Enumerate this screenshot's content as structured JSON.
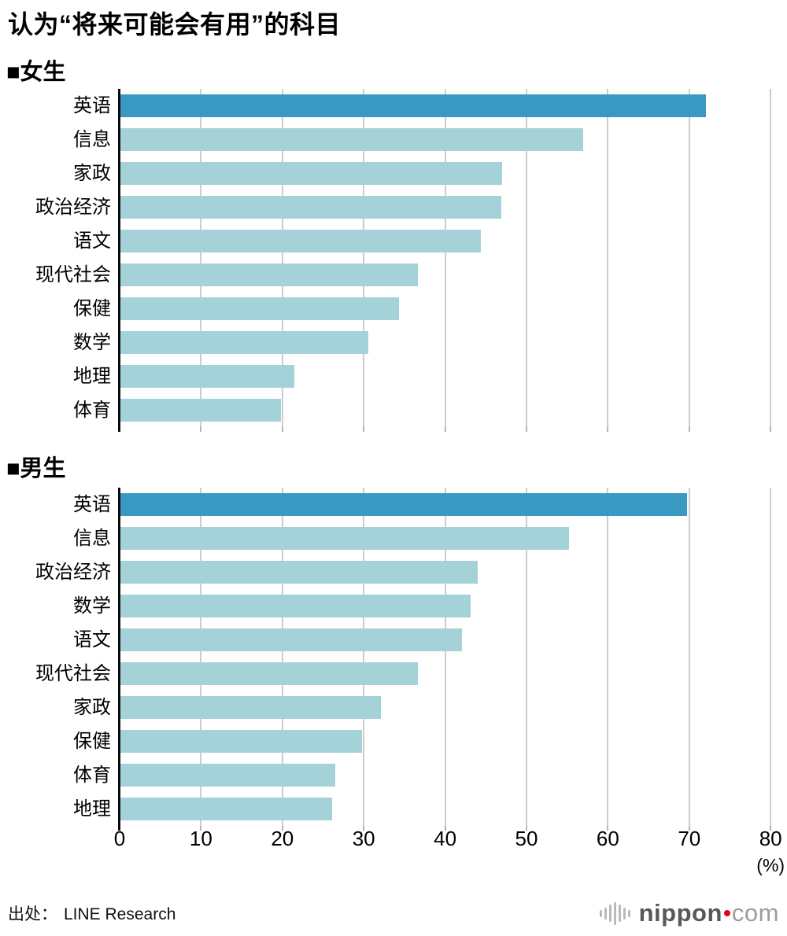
{
  "title": "认为“将来可能会有用”的科目",
  "chart_data": [
    {
      "type": "bar",
      "orientation": "horizontal",
      "section_label": "■女生",
      "categories": [
        "英语",
        "信息",
        "家政",
        "政治经济",
        "语文",
        "现代社会",
        "保健",
        "数学",
        "地理",
        "体育"
      ],
      "values": [
        72.0,
        56.9,
        46.9,
        46.8,
        44.3,
        36.6,
        34.2,
        30.5,
        21.4,
        19.7
      ],
      "highlight_index": 0,
      "xlim": [
        0,
        80
      ],
      "x_ticks": [
        0,
        10,
        20,
        30,
        40,
        50,
        60,
        70,
        80
      ],
      "x_unit": "(%)",
      "grid": true
    },
    {
      "type": "bar",
      "orientation": "horizontal",
      "section_label": "■男生",
      "categories": [
        "英语",
        "信息",
        "政治经济",
        "数学",
        "语文",
        "现代社会",
        "家政",
        "保健",
        "体育",
        "地理"
      ],
      "values": [
        69.6,
        55.1,
        43.9,
        43.0,
        42.0,
        36.6,
        32.0,
        29.7,
        26.4,
        26.0
      ],
      "highlight_index": 0,
      "xlim": [
        0,
        80
      ],
      "x_ticks": [
        0,
        10,
        20,
        30,
        40,
        50,
        60,
        70,
        80
      ],
      "x_unit": "(%)",
      "grid": true
    }
  ],
  "axis": {
    "tick_labels": [
      "0",
      "10",
      "20",
      "30",
      "40",
      "50",
      "60",
      "70",
      "80"
    ],
    "tick_values": [
      0,
      10,
      20,
      30,
      40,
      50,
      60,
      70,
      80
    ],
    "unit_label": "(%)"
  },
  "footer": {
    "source_label": "出处：",
    "source_value": "LINE Research"
  },
  "logo": {
    "name": "nippon",
    "tld": "com",
    "icon": "soundwave-icon"
  },
  "colors": {
    "bar_highlight": "#389ac2",
    "bar_normal": "#a5d2d8",
    "gridline": "#cccccc",
    "axis_line": "#0a0a0a",
    "logo_name": "#595959",
    "logo_tld": "#9d9d9d",
    "logo_dot_red": "#e60012",
    "logo_icon_gray": "#b9b9b9"
  }
}
